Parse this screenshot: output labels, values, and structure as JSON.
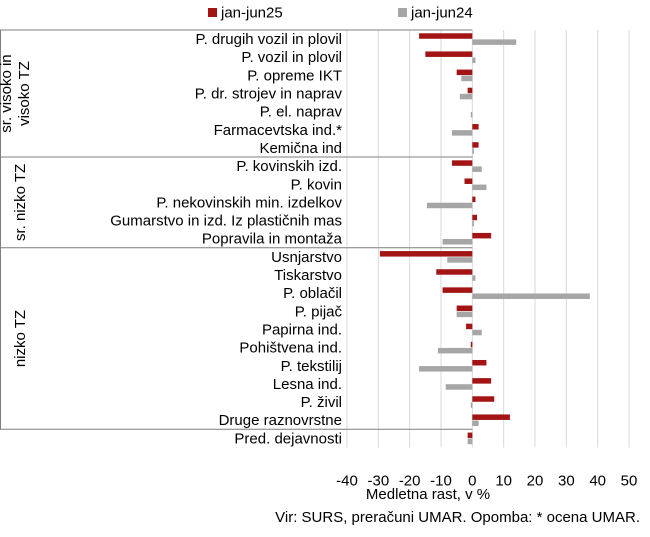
{
  "chart_data": {
    "type": "bar",
    "orientation": "horizontal",
    "xlabel": "Medletna rast, v %",
    "xlim": [
      -40,
      50
    ],
    "x_ticks": [
      -40,
      -30,
      -20,
      -10,
      0,
      10,
      20,
      30,
      40,
      50
    ],
    "grid": "vertical",
    "legend_position": "top",
    "groups": [
      {
        "label": "sr. visoko in visoko TZ",
        "from": 0,
        "to": 6
      },
      {
        "label": "sr. nizko TZ",
        "from": 7,
        "to": 11
      },
      {
        "label": "nizko TZ",
        "from": 12,
        "to": 21
      }
    ],
    "categories": [
      "P. drugih vozil in plovil",
      "P. vozil in plovil",
      "P. opreme IKT",
      "P. dr. strojev in naprav",
      "P. el. naprav",
      "Farmacevtska ind.*",
      "Kemična ind",
      "P. kovinskih izd.",
      "P. kovin",
      "P. nekovinskih min. izdelkov",
      "Gumarstvo in izd. Iz plastičnih mas",
      "Popravila in montaža",
      "Usnjarstvo",
      "Tiskarstvo",
      "P. oblačil",
      "P. pijač",
      "Papirna ind.",
      "Pohištvena ind.",
      "P. tekstilij",
      "Lesna ind.",
      "P. živil",
      "Druge raznovrstne",
      "Pred. dejavnosti"
    ],
    "series": [
      {
        "name": "jan-jun25",
        "color": "#A31515",
        "values": [
          -17,
          -15,
          -5,
          -1.5,
          0,
          2,
          2,
          -6.5,
          -2.5,
          1,
          1.5,
          6,
          -29.5,
          -11.5,
          -9.5,
          -5,
          -2,
          -0.5,
          4.5,
          6,
          7,
          12,
          -1.5
        ]
      },
      {
        "name": "jan-jun24",
        "color": "#A6A6A6",
        "values": [
          14,
          1,
          -3.5,
          -4,
          -0.5,
          -6.5,
          0.5,
          3,
          4.5,
          -14.5,
          0.5,
          -9.5,
          -8,
          1,
          37.5,
          -5,
          3,
          -11,
          -17,
          -8.5,
          -0.5,
          2,
          -1.5
        ]
      }
    ]
  },
  "source_note": "Vir: SURS, preračuni UMAR. Opomba: * ocena UMAR."
}
